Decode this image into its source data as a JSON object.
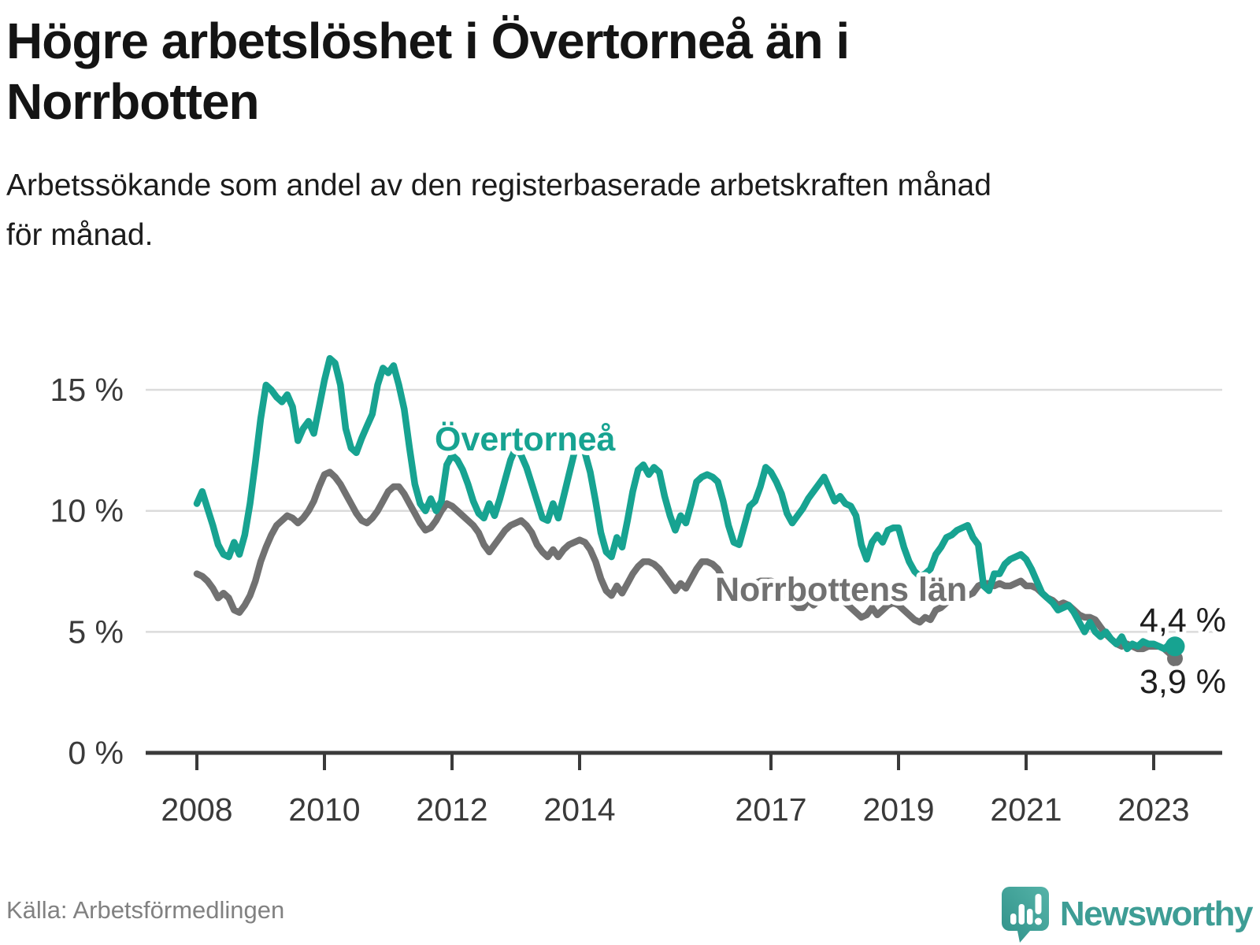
{
  "header": {
    "title_lines": [
      "Högre arbetslöshet i Övertorneå än i",
      "Norrbotten"
    ],
    "subtitle_lines": [
      "Arbetssökande som andel av den registerbaserade arbetskraften månad",
      "för månad."
    ]
  },
  "footer": {
    "source": "Källa: Arbetsförmedlingen",
    "brand": "Newsworthy",
    "logo_icon": "newsworthy-speech-bubble-chart-icon"
  },
  "colors": {
    "overtornea_teal": "#17A391",
    "norrbotten_gray": "#717171",
    "gridline": "#DBDBDB",
    "axis": "#3A3A3A",
    "value_label": "#1E1E1E",
    "brand_teal": "#3E9D95"
  },
  "chart_data": {
    "type": "line",
    "title": "Högre arbetslöshet i Övertorneå än i Norrbotten",
    "subtitle": "Arbetssökande som andel av den registerbaserade arbetskraften månad för månad.",
    "unit": "%",
    "x_start": "2008-01",
    "x_end": "2023-05",
    "x_interval": "monthly",
    "grid": "horizontal",
    "legend_position": "inline-labels",
    "ylim": [
      0,
      17
    ],
    "yticks": [
      {
        "value": 0,
        "label": "0 %"
      },
      {
        "value": 5,
        "label": "5 %"
      },
      {
        "value": 10,
        "label": "10 %"
      },
      {
        "value": 15,
        "label": "15 %"
      }
    ],
    "xticks": [
      {
        "year": 2008,
        "label": "2008"
      },
      {
        "year": 2010,
        "label": "2010"
      },
      {
        "year": 2012,
        "label": "2012"
      },
      {
        "year": 2014,
        "label": "2014"
      },
      {
        "year": 2017,
        "label": "2017"
      },
      {
        "year": 2019,
        "label": "2019"
      },
      {
        "year": 2021,
        "label": "2021"
      },
      {
        "year": 2023,
        "label": "2023"
      }
    ],
    "series": [
      {
        "name": "Övertorneå",
        "color": "#17A391",
        "end_label": "4,4 %",
        "last_value": 4.4,
        "values": [
          10.3,
          10.8,
          10.1,
          9.4,
          8.6,
          8.2,
          8.1,
          8.7,
          8.2,
          9.0,
          10.3,
          12.0,
          13.8,
          15.2,
          15.0,
          14.7,
          14.5,
          14.8,
          14.3,
          12.9,
          13.4,
          13.7,
          13.2,
          14.3,
          15.4,
          16.3,
          16.1,
          15.2,
          13.4,
          12.6,
          12.4,
          13.0,
          13.5,
          14.0,
          15.2,
          15.9,
          15.7,
          16.0,
          15.2,
          14.2,
          12.6,
          11.1,
          10.3,
          10.0,
          10.5,
          10.0,
          10.4,
          11.9,
          12.3,
          12.1,
          11.7,
          11.1,
          10.4,
          9.9,
          9.7,
          10.3,
          9.8,
          10.5,
          11.3,
          12.1,
          12.6,
          12.3,
          11.8,
          11.1,
          10.4,
          9.7,
          9.6,
          10.3,
          9.7,
          10.6,
          11.5,
          12.4,
          12.7,
          12.4,
          11.6,
          10.4,
          9.1,
          8.3,
          8.1,
          8.9,
          8.5,
          9.6,
          10.8,
          11.7,
          11.9,
          11.5,
          11.8,
          11.6,
          10.6,
          9.8,
          9.2,
          9.8,
          9.5,
          10.3,
          11.2,
          11.4,
          11.5,
          11.4,
          11.2,
          10.4,
          9.4,
          8.7,
          8.6,
          9.4,
          10.2,
          10.4,
          11.0,
          11.8,
          11.6,
          11.2,
          10.7,
          9.9,
          9.5,
          9.8,
          10.1,
          10.5,
          10.8,
          11.1,
          11.4,
          10.9,
          10.4,
          10.6,
          10.3,
          10.2,
          9.8,
          8.6,
          8.0,
          8.7,
          9.0,
          8.7,
          9.2,
          9.3,
          9.3,
          8.5,
          7.9,
          7.5,
          7.3,
          7.4,
          7.6,
          8.2,
          8.5,
          8.9,
          9.0,
          9.2,
          9.3,
          9.4,
          8.9,
          8.6,
          6.9,
          6.7,
          7.4,
          7.4,
          7.8,
          8.0,
          8.1,
          8.2,
          8.0,
          7.6,
          7.1,
          6.6,
          6.4,
          6.2,
          5.9,
          6.0,
          6.1,
          5.8,
          5.4,
          5.0,
          5.4,
          5.0,
          4.8,
          5.0,
          4.7,
          4.5,
          4.8,
          4.3,
          4.5,
          4.4,
          4.6,
          4.5,
          4.5,
          4.4,
          4.3,
          4.5,
          4.4
        ]
      },
      {
        "name": "Norrbottens län",
        "color": "#717171",
        "end_label": "3,9 %",
        "last_value": 3.9,
        "values": [
          7.4,
          7.3,
          7.1,
          6.8,
          6.4,
          6.6,
          6.4,
          5.9,
          5.8,
          6.1,
          6.5,
          7.1,
          7.9,
          8.5,
          9.0,
          9.4,
          9.6,
          9.8,
          9.7,
          9.5,
          9.7,
          10.0,
          10.4,
          11.0,
          11.5,
          11.6,
          11.4,
          11.1,
          10.7,
          10.3,
          9.9,
          9.6,
          9.5,
          9.7,
          10.0,
          10.4,
          10.8,
          11.0,
          11.0,
          10.7,
          10.3,
          9.9,
          9.5,
          9.2,
          9.3,
          9.6,
          10.0,
          10.3,
          10.2,
          10.0,
          9.8,
          9.6,
          9.4,
          9.1,
          8.6,
          8.3,
          8.6,
          8.9,
          9.2,
          9.4,
          9.5,
          9.6,
          9.4,
          9.1,
          8.6,
          8.3,
          8.1,
          8.4,
          8.1,
          8.4,
          8.6,
          8.7,
          8.8,
          8.7,
          8.4,
          7.9,
          7.2,
          6.7,
          6.5,
          6.9,
          6.6,
          7.0,
          7.4,
          7.7,
          7.9,
          7.9,
          7.8,
          7.6,
          7.3,
          7.0,
          6.7,
          7.0,
          6.8,
          7.2,
          7.6,
          7.9,
          7.9,
          7.8,
          7.6,
          7.2,
          6.8,
          6.5,
          6.4,
          6.7,
          6.9,
          7.0,
          7.1,
          7.1,
          7.1,
          7.0,
          6.8,
          6.5,
          6.2,
          6.0,
          6.0,
          6.3,
          6.1,
          6.3,
          6.5,
          6.6,
          6.5,
          6.4,
          6.2,
          6.0,
          5.8,
          5.6,
          5.7,
          6.0,
          5.7,
          5.9,
          6.1,
          6.2,
          6.1,
          5.9,
          5.7,
          5.5,
          5.4,
          5.6,
          5.5,
          5.9,
          6.0,
          6.2,
          6.3,
          6.4,
          6.5,
          6.5,
          6.6,
          6.9,
          7.0,
          7.0,
          6.9,
          7.0,
          6.9,
          6.9,
          7.0,
          7.1,
          6.9,
          6.9,
          6.8,
          6.6,
          6.4,
          6.3,
          6.1,
          6.2,
          6.1,
          5.9,
          5.7,
          5.6,
          5.6,
          5.5,
          5.2,
          4.9,
          4.7,
          4.5,
          4.4,
          4.5,
          4.4,
          4.3,
          4.3,
          4.4,
          4.4,
          4.4,
          4.3,
          4.1,
          3.9
        ]
      }
    ]
  }
}
